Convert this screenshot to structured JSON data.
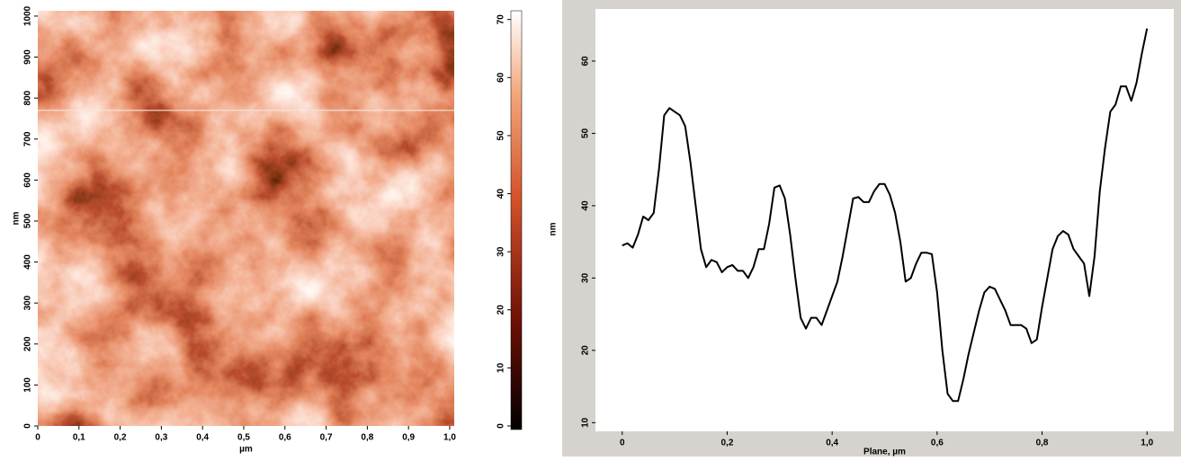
{
  "chart_data": [
    {
      "type": "heatmap",
      "xlabel": "µm",
      "ylabel": "nm",
      "xlim": [
        0,
        1.011
      ],
      "ylim": [
        0,
        1013
      ],
      "xticks": [
        0,
        {
          "value": 0.1,
          "label": "0,1"
        },
        {
          "value": 0.2,
          "label": "0,2"
        },
        {
          "value": 0.3,
          "label": "0,3"
        },
        {
          "value": 0.4,
          "label": "0,4"
        },
        {
          "value": 0.5,
          "label": "0,5"
        },
        {
          "value": 0.6,
          "label": "0,6"
        },
        {
          "value": 0.7,
          "label": "0,7"
        },
        {
          "value": 0.8,
          "label": "0,8"
        },
        {
          "value": 0.9,
          "label": "0,9"
        },
        {
          "value": 1,
          "label": "1,0"
        }
      ],
      "yticks": [
        0,
        100,
        200,
        300,
        400,
        500,
        600,
        700,
        800,
        900,
        1000
      ],
      "profile_line": 770
    },
    {
      "type": "colorbar",
      "ylabel": "nm",
      "ylim": [
        0,
        71.5
      ],
      "yticks": [
        0,
        10,
        20,
        30,
        40,
        50,
        60,
        70
      ]
    },
    {
      "type": "line",
      "xlabel": "Plane, µm",
      "ylabel": "nm",
      "xlim": [
        -0.051,
        1.051
      ],
      "ylim": [
        8.8,
        67.2
      ],
      "xticks": [
        0,
        {
          "value": 0.2,
          "label": "0,2"
        },
        {
          "value": 0.4,
          "label": "0,4"
        },
        {
          "value": 0.6,
          "label": "0,6"
        },
        {
          "value": 0.8,
          "label": "0,8"
        },
        {
          "value": 1,
          "label": "1,0"
        }
      ],
      "yticks": [
        10,
        20,
        30,
        40,
        50,
        60
      ],
      "x": [
        0,
        0.01,
        0.02,
        0.03,
        0.04,
        0.05,
        0.06,
        0.07,
        0.08,
        0.09,
        0.1,
        0.11,
        0.12,
        0.13,
        0.14,
        0.15,
        0.16,
        0.17,
        0.18,
        0.19,
        0.2,
        0.21,
        0.22,
        0.23,
        0.24,
        0.25,
        0.26,
        0.27,
        0.28,
        0.29,
        0.3,
        0.31,
        0.32,
        0.33,
        0.34,
        0.35,
        0.36,
        0.37,
        0.38,
        0.39,
        0.4,
        0.41,
        0.42,
        0.43,
        0.44,
        0.45,
        0.46,
        0.47,
        0.48,
        0.49,
        0.5,
        0.51,
        0.52,
        0.53,
        0.54,
        0.55,
        0.56,
        0.57,
        0.58,
        0.59,
        0.6,
        0.61,
        0.62,
        0.63,
        0.64,
        0.65,
        0.66,
        0.67,
        0.68,
        0.69,
        0.7,
        0.71,
        0.72,
        0.73,
        0.74,
        0.75,
        0.76,
        0.77,
        0.78,
        0.79,
        0.8,
        0.81,
        0.82,
        0.83,
        0.84,
        0.85,
        0.86,
        0.87,
        0.88,
        0.89,
        0.9,
        0.91,
        0.92,
        0.93,
        0.94,
        0.95,
        0.96,
        0.97,
        0.98,
        0.99,
        1
      ],
      "series": [
        {
          "color": "#000000",
          "values": [
            34.5,
            34.8,
            34.2,
            36,
            38.5,
            38,
            39,
            45,
            52.5,
            53.5,
            53,
            52.5,
            51,
            46,
            40,
            34,
            31.5,
            32.5,
            32.2,
            30.8,
            31.5,
            31.8,
            31,
            31,
            30,
            31.5,
            34,
            34,
            37.5,
            42.5,
            42.8,
            41,
            36,
            30,
            24.5,
            23,
            24.5,
            24.5,
            23.5,
            25.5,
            27.5,
            29.5,
            33,
            37,
            41,
            41.2,
            40.5,
            40.5,
            42,
            43,
            43,
            41.5,
            39,
            35,
            29.5,
            30,
            32,
            33.5,
            33.5,
            33.3,
            28,
            20,
            14,
            13,
            13,
            16,
            19.5,
            22.5,
            25.5,
            28,
            28.8,
            28.5,
            27,
            25.5,
            23.5,
            23.5,
            23.5,
            23,
            21,
            21.5,
            26,
            30,
            34,
            35.8,
            36.5,
            36,
            34,
            33,
            32,
            27.5,
            33,
            42,
            48,
            53,
            54,
            56.5,
            56.5,
            54.5,
            57,
            61,
            64.5
          ]
        }
      ]
    }
  ]
}
